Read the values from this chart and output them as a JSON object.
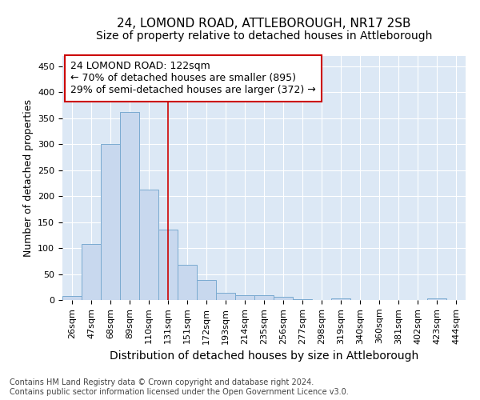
{
  "title": "24, LOMOND ROAD, ATTLEBOROUGH, NR17 2SB",
  "subtitle": "Size of property relative to detached houses in Attleborough",
  "xlabel": "Distribution of detached houses by size in Attleborough",
  "ylabel": "Number of detached properties",
  "footer_line1": "Contains HM Land Registry data © Crown copyright and database right 2024.",
  "footer_line2": "Contains public sector information licensed under the Open Government Licence v3.0.",
  "categories": [
    "26sqm",
    "47sqm",
    "68sqm",
    "89sqm",
    "110sqm",
    "131sqm",
    "151sqm",
    "172sqm",
    "193sqm",
    "214sqm",
    "235sqm",
    "256sqm",
    "277sqm",
    "298sqm",
    "319sqm",
    "340sqm",
    "360sqm",
    "381sqm",
    "402sqm",
    "423sqm",
    "444sqm"
  ],
  "values": [
    8,
    108,
    301,
    362,
    212,
    136,
    68,
    38,
    14,
    10,
    9,
    6,
    2,
    0,
    3,
    0,
    0,
    0,
    0,
    3,
    0
  ],
  "bar_color": "#c8d8ee",
  "bar_edge_color": "#7aaad0",
  "background_color": "#dce8f5",
  "fig_background": "#ffffff",
  "grid_color": "#ffffff",
  "ylim": [
    0,
    470
  ],
  "yticks": [
    0,
    50,
    100,
    150,
    200,
    250,
    300,
    350,
    400,
    450
  ],
  "annotation_text": "24 LOMOND ROAD: 122sqm\n← 70% of detached houses are smaller (895)\n29% of semi-detached houses are larger (372) →",
  "vline_position": 5.0,
  "vline_color": "#cc0000",
  "annotation_box_color": "#ffffff",
  "annotation_box_edge": "#cc0000",
  "title_fontsize": 11,
  "subtitle_fontsize": 10,
  "xlabel_fontsize": 10,
  "ylabel_fontsize": 9,
  "tick_fontsize": 8,
  "annotation_fontsize": 9,
  "footer_fontsize": 7
}
